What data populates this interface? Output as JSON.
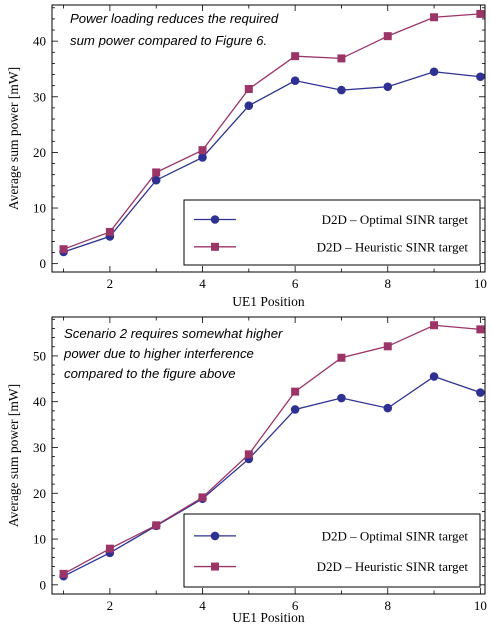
{
  "chart_data": [
    {
      "type": "line",
      "annotation": [
        "Power loading reduces the required",
        "sum power compared to Figure 6."
      ],
      "xlabel": "UE1 Position",
      "ylabel": "Average  sum power [mW]",
      "xlim": [
        0.75,
        10.1
      ],
      "ylim": [
        -1.5,
        46.5
      ],
      "xticks": [
        2,
        4,
        6,
        8,
        10
      ],
      "yticks": [
        0,
        10,
        20,
        30,
        40
      ],
      "legend_position": "bottom-right",
      "x": [
        1,
        2,
        3,
        4,
        5,
        6,
        7,
        8,
        9,
        10
      ],
      "series": [
        {
          "name": "D2D – Optimal SINR target",
          "marker": "circle",
          "color": "#2e3192",
          "values": [
            2.1,
            4.9,
            15.0,
            19.1,
            28.4,
            32.9,
            31.2,
            31.8,
            34.5,
            33.6
          ]
        },
        {
          "name": "D2D – Heuristic SINR target",
          "marker": "square",
          "color": "#9b3467",
          "values": [
            2.6,
            5.7,
            16.4,
            20.4,
            31.4,
            37.3,
            36.9,
            40.9,
            44.3,
            44.9
          ]
        }
      ]
    },
    {
      "type": "line",
      "annotation": [
        "Scenario 2 requires somewhat higher",
        "power due to higher interference",
        "compared to the figure above"
      ],
      "xlabel": "UE1 Position",
      "ylabel": "Average  sum power [mW]",
      "xlim": [
        0.75,
        10.1
      ],
      "ylim": [
        -2,
        58.5
      ],
      "xticks": [
        2,
        4,
        6,
        8,
        10
      ],
      "yticks": [
        0,
        10,
        20,
        30,
        40,
        50
      ],
      "legend_position": "bottom-right",
      "x": [
        1,
        2,
        3,
        4,
        5,
        6,
        7,
        8,
        9,
        10
      ],
      "series": [
        {
          "name": "D2D – Optimal SINR target",
          "marker": "circle",
          "color": "#2e3192",
          "values": [
            1.9,
            7.0,
            12.9,
            18.8,
            27.5,
            38.3,
            40.8,
            38.6,
            45.5,
            42.0
          ]
        },
        {
          "name": "D2D – Heuristic SINR target",
          "marker": "square",
          "color": "#9b3467",
          "values": [
            2.4,
            7.9,
            13.0,
            19.1,
            28.5,
            42.2,
            49.6,
            52.1,
            56.7,
            55.8
          ]
        }
      ]
    }
  ]
}
